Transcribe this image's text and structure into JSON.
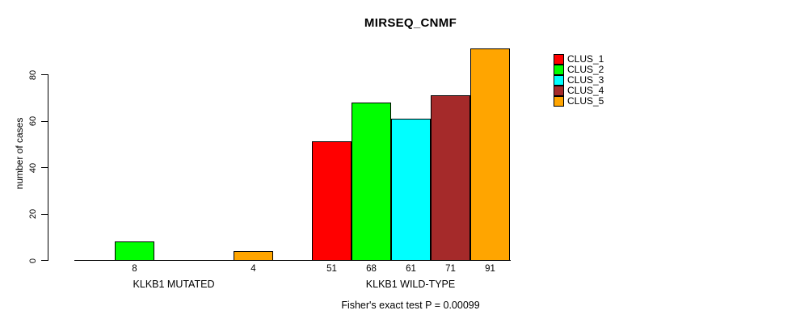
{
  "chart_data": {
    "type": "bar",
    "title": "MIRSEQ_CNMF",
    "ylabel": "number of cases",
    "xlabel": "",
    "yticks": [
      0,
      20,
      40,
      60,
      80
    ],
    "ylim": [
      0,
      92
    ],
    "grid": false,
    "legend_position": "right",
    "categories": [
      "KLKB1 MUTATED",
      "KLKB1 WILD-TYPE"
    ],
    "series": [
      {
        "name": "CLUS_1",
        "color": "#FF0000",
        "values": [
          0,
          51
        ]
      },
      {
        "name": "CLUS_2",
        "color": "#00FF00",
        "values": [
          8,
          68
        ]
      },
      {
        "name": "CLUS_3",
        "color": "#00FFFF",
        "values": [
          0,
          61
        ]
      },
      {
        "name": "CLUS_4",
        "color": "#A52A2A",
        "values": [
          0,
          71
        ]
      },
      {
        "name": "CLUS_5",
        "color": "#FFA500",
        "values": [
          4,
          91
        ]
      }
    ],
    "visible_bar_labels": [
      "8",
      "4",
      "51",
      "68",
      "61",
      "71",
      "91"
    ],
    "annotation": "Fisher's exact test P = 0.00099"
  },
  "colors": {
    "background": "#FFFFFF",
    "axis": "#000000",
    "bar_border": "#000000",
    "text": "#000000"
  }
}
